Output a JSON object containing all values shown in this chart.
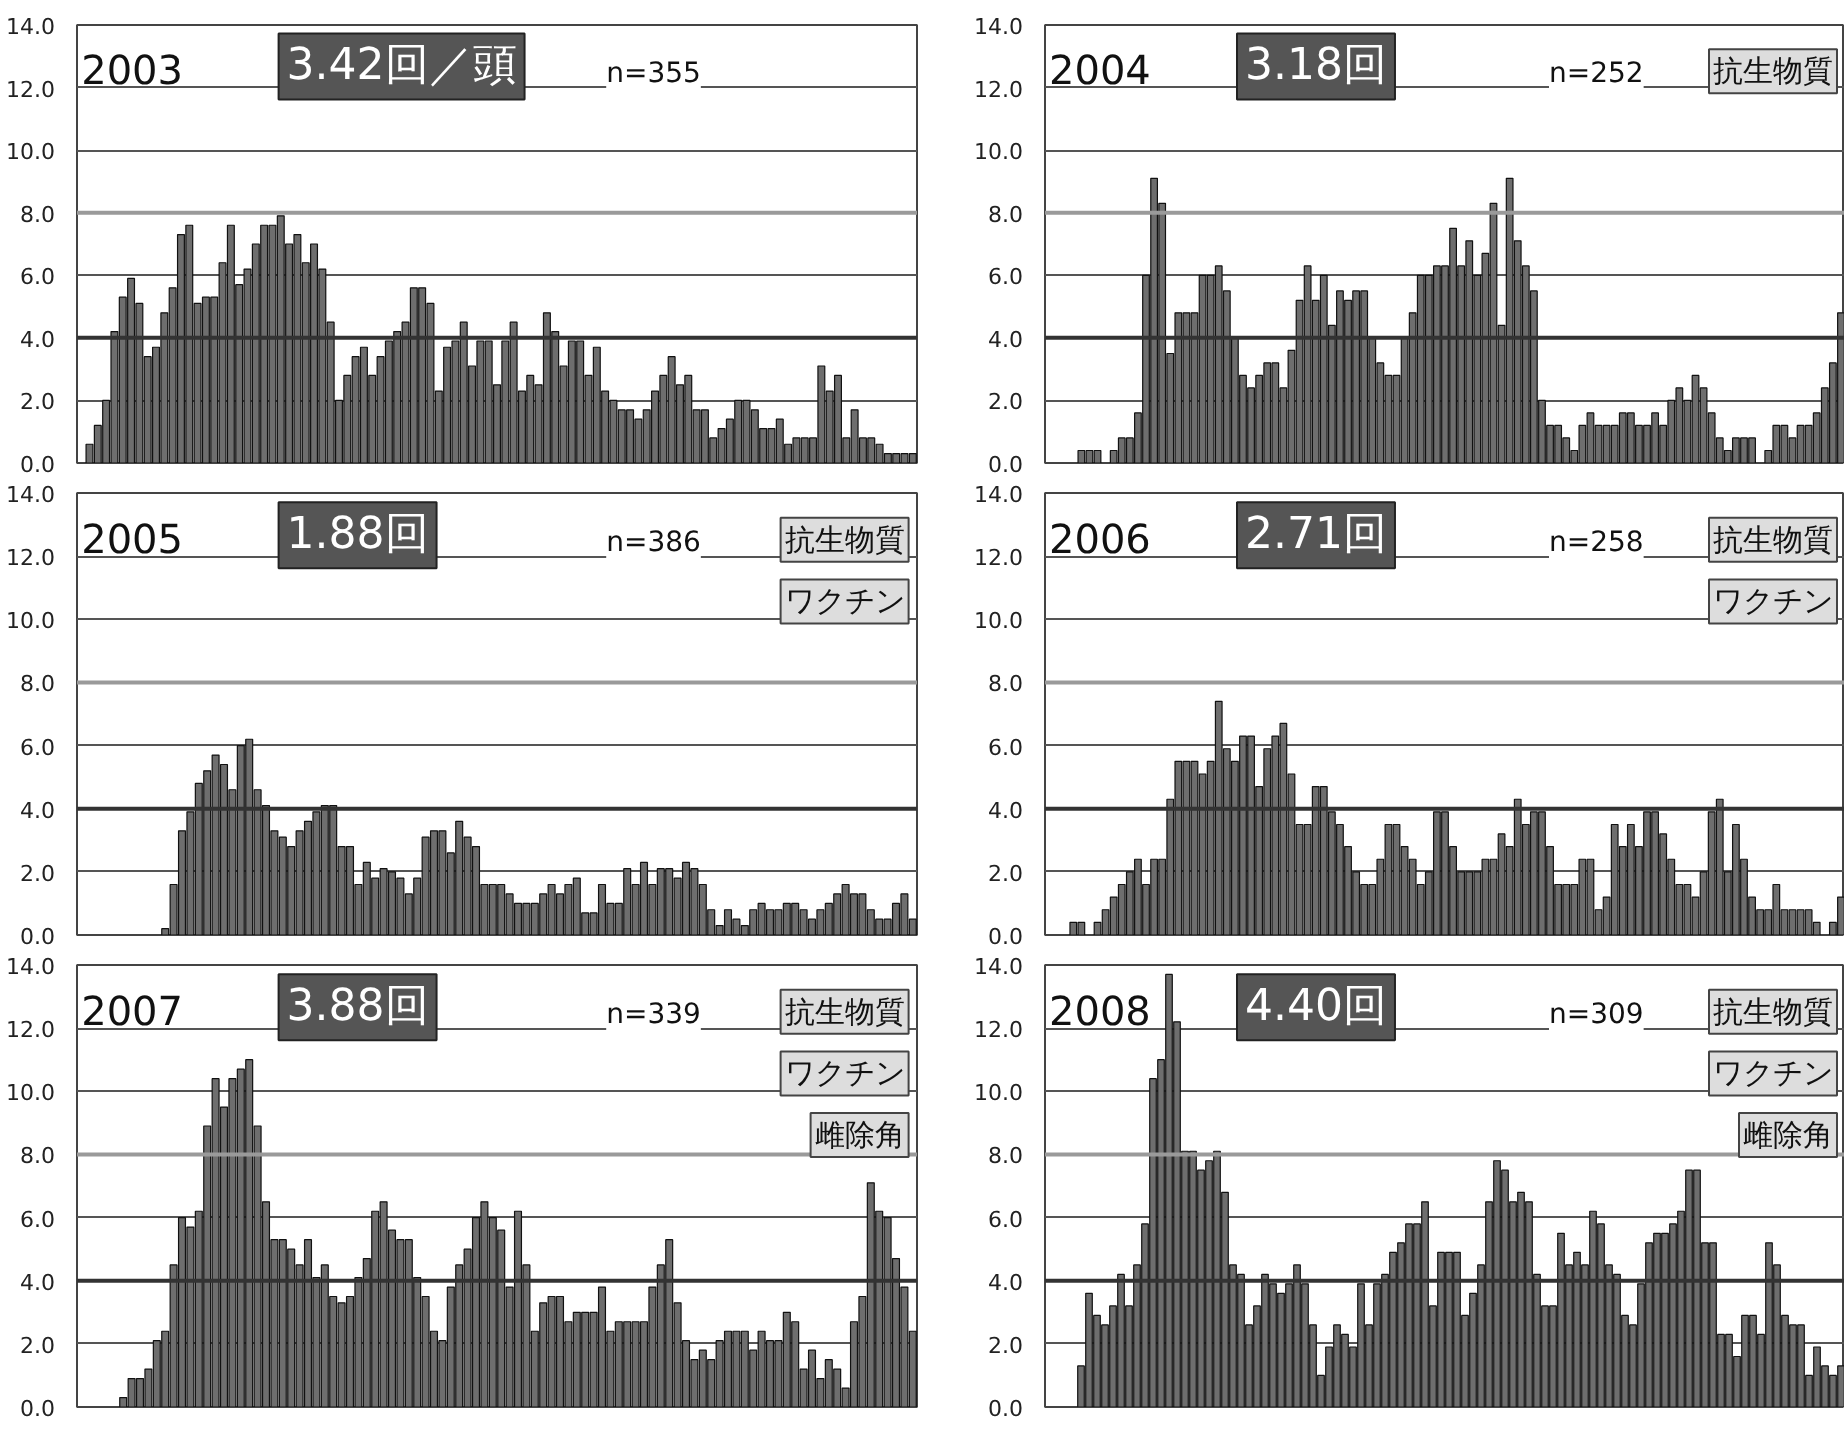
{
  "chart_data": [
    {
      "type": "bar",
      "title": "2003",
      "annotations": [
        "3.42回／頭",
        "n=355"
      ],
      "color": "#6e6e6e",
      "ylim": [
        0,
        14
      ],
      "yticks": [
        {
          "value": 0,
          "label": "0.0"
        },
        {
          "value": 2,
          "label": "2.0"
        },
        {
          "value": 4,
          "label": "4.0"
        },
        {
          "value": 6,
          "label": "6.0"
        },
        {
          "value": 8,
          "label": "8.0"
        },
        {
          "value": 10,
          "label": "10.0"
        },
        {
          "value": 12,
          "label": "12.0"
        },
        {
          "value": 14,
          "label": "14.0"
        }
      ],
      "grid": "y",
      "tick_labels": "y",
      "ref_lines": [
        {
          "axis": "y",
          "value": 4,
          "color": "#333333"
        },
        {
          "axis": "y",
          "value": 8,
          "color": "#9a9a9a"
        }
      ],
      "categories": [
        null,
        null,
        null,
        null,
        null,
        null,
        null,
        null,
        null,
        null,
        null,
        null,
        null,
        null,
        null,
        null,
        null,
        null,
        null,
        null,
        null,
        null,
        null,
        null,
        null,
        null,
        null,
        null,
        null,
        null,
        null,
        null,
        null,
        null,
        null,
        null,
        null,
        null,
        null,
        null,
        null,
        null,
        null,
        null,
        null,
        null,
        null,
        null,
        null,
        null,
        null,
        null,
        null,
        null,
        null,
        null,
        null,
        null,
        null,
        null,
        null,
        null,
        null,
        null,
        null,
        null,
        null,
        null,
        null,
        null,
        null,
        null,
        null,
        null,
        null,
        null,
        null,
        null,
        null,
        null,
        null,
        null,
        null,
        null,
        null,
        null,
        null,
        null,
        null,
        null,
        null,
        null,
        null,
        null,
        null,
        null,
        null,
        null,
        null,
        null,
        null
      ],
      "values": [
        null,
        0.6,
        1.2,
        2.0,
        4.2,
        5.3,
        5.9,
        5.1,
        3.4,
        3.7,
        4.8,
        5.6,
        7.3,
        7.6,
        5.1,
        5.3,
        5.3,
        6.4,
        7.6,
        5.7,
        6.2,
        7.0,
        7.6,
        7.6,
        7.9,
        7.0,
        7.3,
        6.4,
        7.0,
        6.2,
        4.5,
        2.0,
        2.8,
        3.4,
        3.7,
        2.8,
        3.4,
        3.9,
        4.2,
        4.5,
        5.6,
        5.6,
        5.1,
        2.3,
        3.7,
        3.9,
        4.5,
        3.1,
        3.9,
        3.9,
        2.5,
        3.9,
        4.5,
        2.3,
        2.8,
        2.5,
        4.8,
        4.2,
        3.1,
        3.9,
        3.9,
        2.8,
        3.7,
        2.3,
        2.0,
        1.7,
        1.7,
        1.4,
        1.7,
        2.3,
        2.8,
        3.4,
        2.5,
        2.8,
        1.7,
        1.7,
        0.8,
        1.1,
        1.4,
        2.0,
        2.0,
        1.7,
        1.1,
        1.1,
        1.4,
        0.6,
        0.8,
        0.8,
        0.8,
        3.1,
        2.3,
        2.8,
        0.8,
        1.7,
        0.8,
        0.8,
        0.6,
        0.3,
        0.3,
        0.3,
        0.3
      ]
    },
    {
      "type": "bar",
      "title": "2004",
      "annotations": [
        "3.18回",
        "n=252",
        "抗生物質"
      ],
      "color": "#6e6e6e",
      "ylim": [
        0,
        14
      ],
      "yticks": [
        {
          "value": 0,
          "label": "0.0"
        },
        {
          "value": 2,
          "label": "2.0"
        },
        {
          "value": 4,
          "label": "4.0"
        },
        {
          "value": 6,
          "label": "6.0"
        },
        {
          "value": 8,
          "label": "8.0"
        },
        {
          "value": 10,
          "label": "10.0"
        },
        {
          "value": 12,
          "label": "12.0"
        },
        {
          "value": 14,
          "label": "14.0"
        }
      ],
      "grid": "y",
      "tick_labels": "y",
      "ref_lines": [
        {
          "axis": "y",
          "value": 4,
          "color": "#333333"
        },
        {
          "axis": "y",
          "value": 8,
          "color": "#9a9a9a"
        }
      ],
      "categories": [
        null,
        null,
        null,
        null,
        null,
        null,
        null,
        null,
        null,
        null,
        null,
        null,
        null,
        null,
        null,
        null,
        null,
        null,
        null,
        null,
        null,
        null,
        null,
        null,
        null,
        null,
        null,
        null,
        null,
        null,
        null,
        null,
        null,
        null,
        null,
        null,
        null,
        null,
        null,
        null,
        null,
        null,
        null,
        null,
        null,
        null,
        null,
        null,
        null,
        null,
        null,
        null,
        null,
        null,
        null,
        null,
        null,
        null,
        null,
        null,
        null,
        null,
        null,
        null,
        null,
        null,
        null,
        null,
        null,
        null,
        null,
        null,
        null,
        null,
        null,
        null,
        null,
        null,
        null,
        null,
        null,
        null,
        null,
        null,
        null,
        null,
        null,
        null,
        null,
        null,
        null,
        null,
        null,
        null,
        null,
        null,
        null,
        null,
        null
      ],
      "values": [
        null,
        null,
        null,
        null,
        0.4,
        0.4,
        0.4,
        null,
        0.4,
        0.8,
        0.8,
        1.6,
        6.0,
        9.1,
        8.3,
        3.5,
        4.8,
        4.8,
        4.8,
        6.0,
        6.0,
        6.3,
        5.5,
        4.0,
        2.8,
        2.4,
        2.8,
        3.2,
        3.2,
        2.4,
        3.6,
        5.2,
        6.3,
        5.2,
        6.0,
        4.4,
        5.5,
        5.2,
        5.5,
        5.5,
        4.0,
        3.2,
        2.8,
        2.8,
        4.0,
        4.8,
        6.0,
        6.0,
        6.3,
        6.3,
        7.5,
        6.3,
        7.1,
        6.0,
        6.7,
        8.3,
        4.4,
        9.1,
        7.1,
        6.3,
        5.5,
        2.0,
        1.2,
        1.2,
        0.8,
        0.4,
        1.2,
        1.6,
        1.2,
        1.2,
        1.2,
        1.6,
        1.6,
        1.2,
        1.2,
        1.6,
        1.2,
        2.0,
        2.4,
        2.0,
        2.8,
        2.4,
        1.6,
        0.8,
        0.4,
        0.8,
        0.8,
        0.8,
        null,
        0.4,
        1.2,
        1.2,
        0.8,
        1.2,
        1.2,
        1.6,
        2.4,
        3.2,
        4.8
      ]
    },
    {
      "type": "bar",
      "title": "2005",
      "annotations": [
        "1.88回",
        "n=386",
        "抗生物質",
        "ワクチン"
      ],
      "color": "#6e6e6e",
      "ylim": [
        0,
        14
      ],
      "yticks": [
        {
          "value": 0,
          "label": "0.0"
        },
        {
          "value": 2,
          "label": "2.0"
        },
        {
          "value": 4,
          "label": "4.0"
        },
        {
          "value": 6,
          "label": "6.0"
        },
        {
          "value": 8,
          "label": "8.0"
        },
        {
          "value": 10,
          "label": "10.0"
        },
        {
          "value": 12,
          "label": "12.0"
        },
        {
          "value": 14,
          "label": "14.0"
        }
      ],
      "grid": "y",
      "tick_labels": "y",
      "ref_lines": [
        {
          "axis": "y",
          "value": 4,
          "color": "#333333"
        },
        {
          "axis": "y",
          "value": 8,
          "color": "#9a9a9a"
        }
      ],
      "categories": [
        null,
        null,
        null,
        null,
        null,
        null,
        null,
        null,
        null,
        null,
        null,
        null,
        null,
        null,
        null,
        null,
        null,
        null,
        null,
        null,
        null,
        null,
        null,
        null,
        null,
        null,
        null,
        null,
        null,
        null,
        null,
        null,
        null,
        null,
        null,
        null,
        null,
        null,
        null,
        null,
        null,
        null,
        null,
        null,
        null,
        null,
        null,
        null,
        null,
        null,
        null,
        null,
        null,
        null,
        null,
        null,
        null,
        null,
        null,
        null,
        null,
        null,
        null,
        null,
        null,
        null,
        null,
        null,
        null,
        null,
        null,
        null,
        null,
        null,
        null,
        null,
        null,
        null,
        null,
        null,
        null,
        null,
        null,
        null,
        null,
        null,
        null,
        null,
        null,
        null,
        null,
        null,
        null,
        null,
        null,
        null,
        null,
        null,
        null,
        null
      ],
      "values": [
        null,
        null,
        null,
        null,
        null,
        null,
        null,
        null,
        null,
        null,
        0.2,
        1.6,
        3.3,
        3.9,
        4.8,
        5.2,
        5.7,
        5.4,
        4.6,
        6.0,
        6.2,
        4.6,
        4.1,
        3.3,
        3.1,
        2.8,
        3.3,
        3.6,
        3.9,
        4.1,
        4.1,
        2.8,
        2.8,
        1.6,
        2.3,
        1.8,
        2.1,
        2.0,
        1.8,
        1.3,
        1.8,
        3.1,
        3.3,
        3.3,
        2.6,
        3.6,
        3.1,
        2.8,
        1.6,
        1.6,
        1.6,
        1.3,
        1.0,
        1.0,
        1.0,
        1.3,
        1.6,
        1.3,
        1.6,
        1.8,
        0.7,
        0.7,
        1.6,
        1.0,
        1.0,
        2.1,
        1.6,
        2.3,
        1.6,
        2.1,
        2.1,
        1.8,
        2.3,
        2.1,
        1.6,
        0.8,
        0.3,
        0.8,
        0.5,
        0.3,
        0.8,
        1.0,
        0.8,
        0.8,
        1.0,
        1.0,
        0.8,
        0.5,
        0.8,
        1.0,
        1.3,
        1.6,
        1.3,
        1.3,
        0.8,
        0.5,
        0.5,
        1.0,
        1.3,
        0.5
      ]
    },
    {
      "type": "bar",
      "title": "2006",
      "annotations": [
        "2.71回",
        "n=258",
        "抗生物質",
        "ワクチン"
      ],
      "color": "#6e6e6e",
      "ylim": [
        0,
        14
      ],
      "yticks": [
        {
          "value": 0,
          "label": "0.0"
        },
        {
          "value": 2,
          "label": "2.0"
        },
        {
          "value": 4,
          "label": "4.0"
        },
        {
          "value": 6,
          "label": "6.0"
        },
        {
          "value": 8,
          "label": "8.0"
        },
        {
          "value": 10,
          "label": "10.0"
        },
        {
          "value": 12,
          "label": "12.0"
        },
        {
          "value": 14,
          "label": "14.0"
        }
      ],
      "grid": "y",
      "tick_labels": "y",
      "ref_lines": [
        {
          "axis": "y",
          "value": 4,
          "color": "#333333"
        },
        {
          "axis": "y",
          "value": 8,
          "color": "#9a9a9a"
        }
      ],
      "categories": [
        null,
        null,
        null,
        null,
        null,
        null,
        null,
        null,
        null,
        null,
        null,
        null,
        null,
        null,
        null,
        null,
        null,
        null,
        null,
        null,
        null,
        null,
        null,
        null,
        null,
        null,
        null,
        null,
        null,
        null,
        null,
        null,
        null,
        null,
        null,
        null,
        null,
        null,
        null,
        null,
        null,
        null,
        null,
        null,
        null,
        null,
        null,
        null,
        null,
        null,
        null,
        null,
        null,
        null,
        null,
        null,
        null,
        null,
        null,
        null,
        null,
        null,
        null,
        null,
        null,
        null,
        null,
        null,
        null,
        null,
        null,
        null,
        null,
        null,
        null,
        null,
        null,
        null,
        null,
        null,
        null,
        null,
        null,
        null,
        null,
        null,
        null,
        null,
        null,
        null,
        null,
        null,
        null,
        null,
        null,
        null,
        null,
        null,
        null
      ],
      "values": [
        null,
        null,
        null,
        0.4,
        0.4,
        null,
        0.4,
        0.8,
        1.2,
        1.6,
        2.0,
        2.4,
        1.6,
        2.4,
        2.4,
        4.3,
        5.5,
        5.5,
        5.5,
        5.1,
        5.5,
        7.4,
        5.9,
        5.5,
        6.3,
        6.3,
        4.7,
        5.9,
        6.3,
        6.7,
        5.1,
        3.5,
        3.5,
        4.7,
        4.7,
        3.9,
        3.5,
        2.8,
        2.0,
        1.6,
        1.6,
        2.4,
        3.5,
        3.5,
        2.8,
        2.4,
        1.6,
        2.0,
        3.9,
        3.9,
        2.8,
        2.0,
        2.0,
        2.0,
        2.4,
        2.4,
        3.2,
        2.8,
        4.3,
        3.5,
        3.9,
        3.9,
        2.8,
        1.6,
        1.6,
        1.6,
        2.4,
        2.4,
        0.8,
        1.2,
        3.5,
        2.8,
        3.5,
        2.8,
        3.9,
        3.9,
        3.2,
        2.4,
        1.6,
        1.6,
        1.2,
        2.0,
        3.9,
        4.3,
        2.0,
        3.5,
        2.4,
        1.2,
        0.8,
        0.8,
        1.6,
        0.8,
        0.8,
        0.8,
        0.8,
        0.4,
        null,
        0.4,
        1.2
      ]
    },
    {
      "type": "bar",
      "title": "2007",
      "annotations": [
        "3.88回",
        "n=339",
        "抗生物質",
        "ワクチン",
        "雌除角"
      ],
      "color": "#6e6e6e",
      "ylim": [
        0,
        14
      ],
      "yticks": [
        {
          "value": 0,
          "label": "0.0"
        },
        {
          "value": 2,
          "label": "2.0"
        },
        {
          "value": 4,
          "label": "4.0"
        },
        {
          "value": 6,
          "label": "6.0"
        },
        {
          "value": 8,
          "label": "8.0"
        },
        {
          "value": 10,
          "label": "10.0"
        },
        {
          "value": 12,
          "label": "12.0"
        },
        {
          "value": 14,
          "label": "14.0"
        }
      ],
      "grid": "y",
      "tick_labels": "y",
      "ref_lines": [
        {
          "axis": "y",
          "value": 4,
          "color": "#333333"
        },
        {
          "axis": "y",
          "value": 8,
          "color": "#9a9a9a"
        }
      ],
      "categories": [
        null,
        null,
        null,
        null,
        null,
        null,
        null,
        null,
        null,
        null,
        null,
        null,
        null,
        null,
        null,
        null,
        null,
        null,
        null,
        null,
        null,
        null,
        null,
        null,
        null,
        null,
        null,
        null,
        null,
        null,
        null,
        null,
        null,
        null,
        null,
        null,
        null,
        null,
        null,
        null,
        null,
        null,
        null,
        null,
        null,
        null,
        null,
        null,
        null,
        null,
        null,
        null,
        null,
        null,
        null,
        null,
        null,
        null,
        null,
        null,
        null,
        null,
        null,
        null,
        null,
        null,
        null,
        null,
        null,
        null,
        null,
        null,
        null,
        null,
        null,
        null,
        null,
        null,
        null,
        null,
        null,
        null,
        null,
        null,
        null,
        null,
        null,
        null,
        null,
        null,
        null,
        null,
        null,
        null,
        null,
        null,
        null,
        null,
        null,
        null
      ],
      "values": [
        null,
        null,
        null,
        null,
        null,
        0.3,
        0.9,
        0.9,
        1.2,
        2.1,
        2.4,
        4.5,
        6.0,
        5.7,
        6.2,
        8.9,
        10.4,
        9.5,
        10.4,
        10.7,
        11.0,
        8.9,
        6.5,
        5.3,
        5.3,
        5.0,
        4.5,
        5.3,
        4.1,
        4.5,
        3.5,
        3.3,
        3.5,
        4.1,
        4.7,
        6.2,
        6.5,
        5.6,
        5.3,
        5.3,
        4.1,
        3.5,
        2.4,
        2.1,
        3.8,
        4.5,
        5.0,
        6.0,
        6.5,
        6.0,
        5.6,
        3.8,
        6.2,
        4.5,
        2.4,
        3.3,
        3.5,
        3.5,
        2.7,
        3.0,
        3.0,
        3.0,
        3.8,
        2.4,
        2.7,
        2.7,
        2.7,
        2.7,
        3.8,
        4.5,
        5.3,
        3.3,
        2.1,
        1.5,
        1.8,
        1.5,
        2.1,
        2.4,
        2.4,
        2.4,
        1.8,
        2.4,
        2.1,
        2.1,
        3.0,
        2.7,
        1.2,
        1.8,
        0.9,
        1.5,
        1.2,
        0.6,
        2.7,
        3.5,
        7.1,
        6.2,
        6.0,
        4.7,
        3.8,
        2.4
      ]
    },
    {
      "type": "bar",
      "title": "2008",
      "annotations": [
        "4.40回",
        "n=309",
        "抗生物質",
        "ワクチン",
        "雌除角"
      ],
      "color": "#6e6e6e",
      "ylim": [
        0,
        14
      ],
      "yticks": [
        {
          "value": 0,
          "label": "0.0"
        },
        {
          "value": 2,
          "label": "2.0"
        },
        {
          "value": 4,
          "label": "4.0"
        },
        {
          "value": 6,
          "label": "6.0"
        },
        {
          "value": 8,
          "label": "8.0"
        },
        {
          "value": 10,
          "label": "10.0"
        },
        {
          "value": 12,
          "label": "12.0"
        },
        {
          "value": 14,
          "label": "14.0"
        }
      ],
      "grid": "y",
      "tick_labels": "y",
      "ref_lines": [
        {
          "axis": "y",
          "value": 4,
          "color": "#333333"
        },
        {
          "axis": "y",
          "value": 8,
          "color": "#9a9a9a"
        }
      ],
      "categories": [
        null,
        null,
        null,
        null,
        null,
        null,
        null,
        null,
        null,
        null,
        null,
        null,
        null,
        null,
        null,
        null,
        null,
        null,
        null,
        null,
        null,
        null,
        null,
        null,
        null,
        null,
        null,
        null,
        null,
        null,
        null,
        null,
        null,
        null,
        null,
        null,
        null,
        null,
        null,
        null,
        null,
        null,
        null,
        null,
        null,
        null,
        null,
        null,
        null,
        null,
        null,
        null,
        null,
        null,
        null,
        null,
        null,
        null,
        null,
        null,
        null,
        null,
        null,
        null,
        null,
        null,
        null,
        null,
        null,
        null,
        null,
        null,
        null,
        null,
        null,
        null,
        null,
        null,
        null,
        null,
        null,
        null,
        null,
        null,
        null,
        null,
        null,
        null,
        null,
        null,
        null,
        null,
        null,
        null,
        null,
        null,
        null,
        null,
        null,
        null
      ],
      "values": [
        null,
        null,
        null,
        null,
        1.3,
        3.6,
        2.9,
        2.6,
        3.2,
        4.2,
        3.2,
        4.5,
        5.8,
        10.4,
        11.0,
        13.7,
        12.2,
        8.1,
        8.1,
        7.5,
        7.8,
        8.1,
        6.8,
        4.5,
        4.2,
        2.6,
        3.2,
        4.2,
        3.9,
        3.6,
        3.9,
        4.5,
        3.9,
        2.6,
        1.0,
        1.9,
        2.6,
        2.3,
        1.9,
        3.9,
        2.6,
        3.9,
        4.2,
        4.9,
        5.2,
        5.8,
        5.8,
        6.5,
        3.2,
        4.9,
        4.9,
        4.9,
        2.9,
        3.6,
        4.5,
        6.5,
        7.8,
        7.5,
        6.5,
        6.8,
        6.5,
        4.2,
        3.2,
        3.2,
        5.5,
        4.5,
        4.9,
        4.5,
        6.2,
        5.8,
        4.5,
        4.2,
        2.9,
        2.6,
        3.9,
        5.2,
        5.5,
        5.5,
        5.8,
        6.2,
        7.5,
        7.5,
        5.2,
        5.2,
        2.3,
        2.3,
        1.6,
        2.9,
        2.9,
        2.3,
        5.2,
        4.5,
        2.9,
        2.6,
        2.6,
        1.0,
        1.9,
        1.3,
        1.0,
        1.3
      ]
    }
  ]
}
